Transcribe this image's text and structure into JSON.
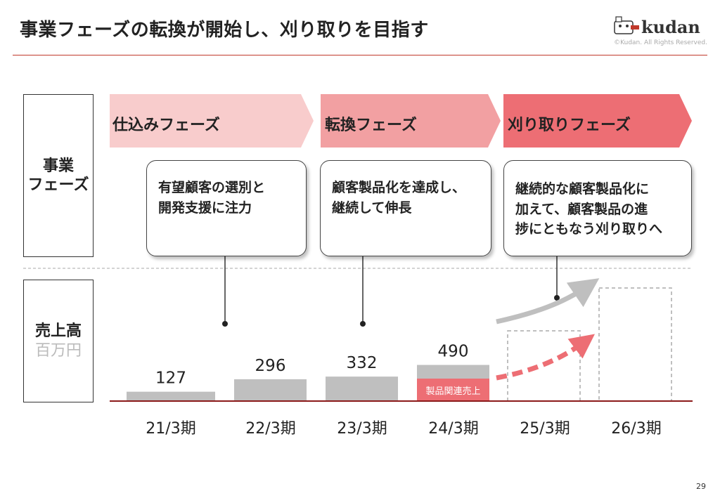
{
  "header": {
    "title": "事業フェーズの転換が開始し、刈り取りを目指す",
    "copyright": "©Kudan. All Rights Reserved.",
    "logo_text": "kudan",
    "page_number": "29"
  },
  "row_labels": {
    "business_phase": [
      "事業",
      "フェーズ"
    ],
    "revenue": "売上高",
    "revenue_unit": "百万円"
  },
  "phases": [
    {
      "label": "仕込みフェーズ",
      "color": "#f8cccc",
      "callout": [
        "有望顧客の選別と",
        "開発支援に注力"
      ]
    },
    {
      "label": "転換フェーズ",
      "color": "#f2a0a2",
      "callout": [
        "顧客製品化を達成し、",
        "継続して伸長"
      ]
    },
    {
      "label": "刈り取りフェーズ",
      "color": "#ed6e74",
      "callout": [
        "継続的な顧客製品化に",
        "加えて、顧客製品の進",
        "捗にともなう刈り取りへ"
      ]
    }
  ],
  "colors": {
    "bar": "#bfbfbf",
    "product_revenue": "#ed6e74",
    "axis": "#8b1a1a",
    "arrow_gray": "#bfbfbf",
    "arrow_red": "#ed6e74",
    "forecast_border": "#aaaaaa"
  },
  "chart_data": {
    "type": "bar",
    "categories": [
      "21/3期",
      "22/3期",
      "23/3期",
      "24/3期",
      "25/3期",
      "26/3期"
    ],
    "values": [
      127,
      296,
      332,
      490,
      null,
      null
    ],
    "value_labels": [
      "127",
      "296",
      "332",
      "490",
      "",
      ""
    ],
    "product_related_segment": {
      "category": "24/3期",
      "label": "製品関連売上"
    },
    "forecast_categories": [
      "25/3期",
      "26/3期"
    ],
    "unit": "百万円"
  }
}
